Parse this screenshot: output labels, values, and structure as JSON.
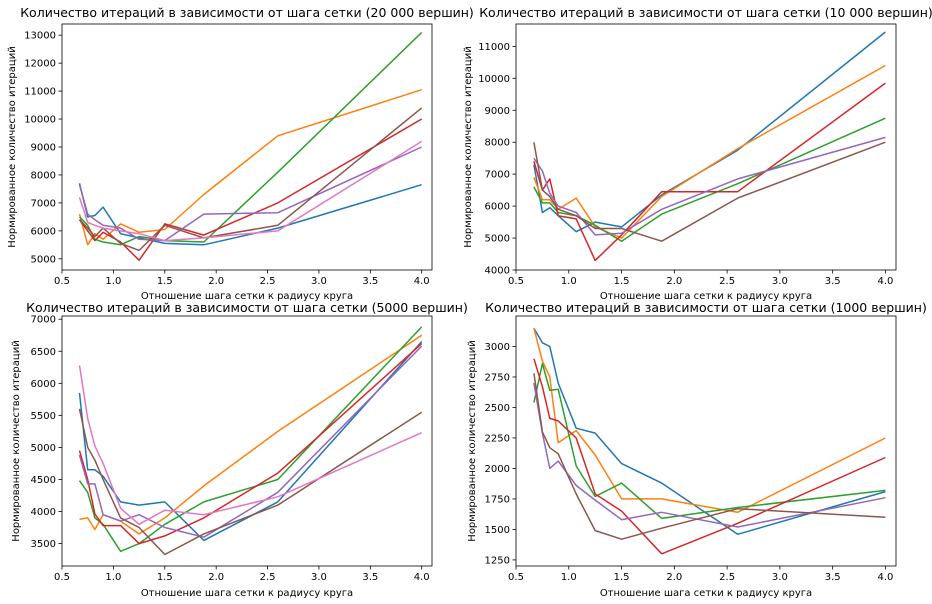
{
  "colors": [
    "#1f77b4",
    "#ff7f0e",
    "#2ca02c",
    "#d62728",
    "#9467bd",
    "#8c564b",
    "#e377c2"
  ],
  "chart_data": [
    {
      "type": "line",
      "title": "Количество итераций в зависимости от шага сетки (20 000 вершин)",
      "xlabel": "Отношение шага сетки к радиусу круга",
      "ylabel": "Нормированное количество итераций",
      "xlim": [
        0.5,
        4.1
      ],
      "ylim": [
        4600,
        13400
      ],
      "xticks": [
        0.5,
        1.0,
        1.5,
        2.0,
        2.5,
        3.0,
        3.5,
        4.0
      ],
      "xtick_labels": [
        "0.5",
        "1.0",
        "1.5",
        "2.0",
        "2.5",
        "3.0",
        "3.5",
        "4.0"
      ],
      "yticks": [
        5000,
        6000,
        7000,
        8000,
        9000,
        10000,
        11000,
        12000,
        13000
      ],
      "ytick_labels": [
        "5000",
        "6000",
        "7000",
        "8000",
        "9000",
        "10000",
        "11000",
        "12000",
        "13000"
      ],
      "grid": false,
      "series": [
        {
          "x": [
            0.67,
            0.75,
            0.82,
            0.9,
            1.07,
            1.25,
            1.5,
            1.88,
            2.6,
            4.0
          ],
          "y": [
            7700,
            6500,
            6550,
            6850,
            5900,
            5750,
            5550,
            5500,
            6100,
            7650
          ]
        },
        {
          "x": [
            0.67,
            0.75,
            0.82,
            0.9,
            1.07,
            1.25,
            1.5,
            1.88,
            2.6,
            4.0
          ],
          "y": [
            6600,
            5500,
            5900,
            5700,
            6250,
            5950,
            6050,
            7300,
            9400,
            11050
          ]
        },
        {
          "x": [
            0.67,
            0.75,
            0.82,
            0.9,
            1.07,
            1.25,
            1.5,
            1.88,
            2.6,
            4.0
          ],
          "y": [
            6500,
            6200,
            5700,
            5600,
            5500,
            5800,
            5650,
            5600,
            8100,
            13100
          ]
        },
        {
          "x": [
            0.67,
            0.75,
            0.82,
            0.9,
            1.07,
            1.25,
            1.5,
            1.88,
            2.6,
            4.0
          ],
          "y": [
            6400,
            6000,
            5650,
            5950,
            5600,
            4950,
            6250,
            5850,
            7000,
            10000
          ]
        },
        {
          "x": [
            0.67,
            0.75,
            0.82,
            0.9,
            1.07,
            1.25,
            1.5,
            1.88,
            2.6,
            4.0
          ],
          "y": [
            7650,
            6600,
            6400,
            6200,
            6100,
            5700,
            5650,
            6600,
            6650,
            9000
          ]
        },
        {
          "x": [
            0.67,
            0.75,
            0.82,
            0.9,
            1.07,
            1.25,
            1.5,
            1.88,
            2.6,
            4.0
          ],
          "y": [
            6400,
            6100,
            5800,
            6100,
            5550,
            5300,
            6200,
            5750,
            6200,
            10400
          ]
        },
        {
          "x": [
            0.67,
            0.75,
            0.82,
            0.9,
            1.07,
            1.25,
            1.5,
            1.88,
            2.6,
            4.0
          ],
          "y": [
            7200,
            6300,
            6200,
            6100,
            6000,
            5900,
            5650,
            5750,
            6000,
            9200
          ]
        }
      ]
    },
    {
      "type": "line",
      "title": "Количество итераций в зависимости от шага сетки (10 000 вершин)",
      "xlabel": "Отношение шага сетки к радиусу круга",
      "ylabel": "Нормированное количество итераций",
      "xlim": [
        0.5,
        4.1
      ],
      "ylim": [
        4000,
        11700
      ],
      "xticks": [
        0.5,
        1.0,
        1.5,
        2.0,
        2.5,
        3.0,
        3.5,
        4.0
      ],
      "xtick_labels": [
        "0.5",
        "1.0",
        "1.5",
        "2.0",
        "2.5",
        "3.0",
        "3.5",
        "4.0"
      ],
      "yticks": [
        4000,
        5000,
        6000,
        7000,
        8000,
        9000,
        10000,
        11000
      ],
      "ytick_labels": [
        "4000",
        "5000",
        "6000",
        "7000",
        "8000",
        "9000",
        "10000",
        "11000"
      ],
      "grid": false,
      "series": [
        {
          "x": [
            0.67,
            0.75,
            0.82,
            0.9,
            1.07,
            1.25,
            1.5,
            1.88,
            2.6,
            4.0
          ],
          "y": [
            7300,
            5800,
            5950,
            5700,
            5200,
            5500,
            5350,
            6350,
            7750,
            11450
          ]
        },
        {
          "x": [
            0.67,
            0.75,
            0.82,
            0.9,
            1.07,
            1.25,
            1.5,
            1.88,
            2.6,
            4.0
          ],
          "y": [
            6900,
            6200,
            6200,
            5900,
            6250,
            5350,
            5000,
            6300,
            7800,
            10400
          ]
        },
        {
          "x": [
            0.67,
            0.75,
            0.82,
            0.9,
            1.07,
            1.25,
            1.5,
            1.88,
            2.6,
            4.0
          ],
          "y": [
            6600,
            6100,
            6100,
            5800,
            5700,
            5400,
            4900,
            5750,
            6700,
            8750
          ]
        },
        {
          "x": [
            0.67,
            0.75,
            0.82,
            0.9,
            1.07,
            1.25,
            1.5,
            1.88,
            2.6,
            4.0
          ],
          "y": [
            7400,
            6500,
            6850,
            5700,
            5600,
            4300,
            5100,
            6450,
            6450,
            9850
          ]
        },
        {
          "x": [
            0.67,
            0.75,
            0.82,
            0.9,
            1.07,
            1.25,
            1.5,
            1.88,
            2.6,
            4.0
          ],
          "y": [
            7500,
            7100,
            6400,
            6000,
            5800,
            5100,
            5150,
            5900,
            6850,
            8150
          ]
        },
        {
          "x": [
            0.67,
            0.75,
            0.82,
            0.9,
            1.07,
            1.25,
            1.5,
            1.88,
            2.6,
            4.0
          ],
          "y": [
            8000,
            6500,
            6300,
            5900,
            5700,
            5300,
            5300,
            4900,
            6250,
            8000
          ]
        }
      ]
    },
    {
      "type": "line",
      "title": "Количество итераций в зависимости от шага сетки (5000 вершин)",
      "xlabel": "Отношение шага сетки к радиусу круга",
      "ylabel": "Нормированное количество итераций",
      "xlim": [
        0.5,
        4.1
      ],
      "ylim": [
        3150,
        7050
      ],
      "xticks": [
        0.5,
        1.0,
        1.5,
        2.0,
        2.5,
        3.0,
        3.5,
        4.0
      ],
      "xtick_labels": [
        "0.5",
        "1.0",
        "1.5",
        "2.0",
        "2.5",
        "3.0",
        "3.5",
        "4.0"
      ],
      "yticks": [
        3500,
        4000,
        4500,
        5000,
        5500,
        6000,
        6500,
        7000
      ],
      "ytick_labels": [
        "3500",
        "4000",
        "4500",
        "5000",
        "5500",
        "6000",
        "6500",
        "7000"
      ],
      "grid": false,
      "series": [
        {
          "x": [
            0.67,
            0.75,
            0.82,
            0.9,
            1.07,
            1.25,
            1.5,
            1.88,
            2.6,
            4.0
          ],
          "y": [
            5850,
            4650,
            4650,
            4550,
            4150,
            4100,
            4150,
            3550,
            4150,
            6650
          ]
        },
        {
          "x": [
            0.67,
            0.75,
            0.82,
            0.9,
            1.07,
            1.25,
            1.5,
            1.88,
            2.6,
            4.0
          ],
          "y": [
            3880,
            3900,
            3720,
            3950,
            3850,
            3650,
            3900,
            4400,
            5250,
            6750
          ]
        },
        {
          "x": [
            0.67,
            0.75,
            0.82,
            0.9,
            1.07,
            1.25,
            1.5,
            1.88,
            2.6,
            4.0
          ],
          "y": [
            4480,
            4300,
            3900,
            3800,
            3380,
            3500,
            3800,
            4150,
            4500,
            6880
          ]
        },
        {
          "x": [
            0.67,
            0.75,
            0.82,
            0.9,
            1.07,
            1.25,
            1.5,
            1.88,
            2.6,
            4.0
          ],
          "y": [
            4950,
            4500,
            3960,
            3780,
            3780,
            3500,
            3620,
            3900,
            4600,
            6620
          ]
        },
        {
          "x": [
            0.67,
            0.75,
            0.82,
            0.9,
            1.07,
            1.25,
            1.5,
            1.88,
            2.6,
            4.0
          ],
          "y": [
            4880,
            4430,
            4430,
            3950,
            3850,
            3950,
            3750,
            3600,
            4300,
            6580
          ]
        },
        {
          "x": [
            0.67,
            0.75,
            0.82,
            0.9,
            1.07,
            1.25,
            1.5,
            1.88,
            2.6,
            4.0
          ],
          "y": [
            5600,
            5000,
            4800,
            4500,
            3900,
            3750,
            3330,
            3650,
            4100,
            5550
          ]
        },
        {
          "x": [
            0.67,
            0.75,
            0.82,
            0.9,
            1.07,
            1.25,
            1.5,
            1.88,
            2.6,
            4.0
          ],
          "y": [
            6280,
            5450,
            5020,
            4750,
            4050,
            3800,
            4020,
            3950,
            4230,
            5230
          ]
        }
      ]
    },
    {
      "type": "line",
      "title": "Количество итераций в зависимости от шага сетки (1000 вершин)",
      "xlabel": "Отношение шага сетки к радиусу круга",
      "ylabel": "Нормированное количество итераций",
      "xlim": [
        0.5,
        4.1
      ],
      "ylim": [
        1200,
        3250
      ],
      "xticks": [
        0.5,
        1.0,
        1.5,
        2.0,
        2.5,
        3.0,
        3.5,
        4.0
      ],
      "xtick_labels": [
        "0.5",
        "1.0",
        "1.5",
        "2.0",
        "2.5",
        "3.0",
        "3.5",
        "4.0"
      ],
      "yticks": [
        1250,
        1500,
        1750,
        2000,
        2250,
        2500,
        2750,
        3000
      ],
      "ytick_labels": [
        "1250",
        "1500",
        "1750",
        "2000",
        "2250",
        "2500",
        "2750",
        "3000"
      ],
      "grid": false,
      "series": [
        {
          "x": [
            0.67,
            0.75,
            0.82,
            0.9,
            1.07,
            1.25,
            1.5,
            1.88,
            2.6,
            4.0
          ],
          "y": [
            3150,
            3030,
            3000,
            2700,
            2330,
            2290,
            2040,
            1880,
            1460,
            1810
          ]
        },
        {
          "x": [
            0.67,
            0.75,
            0.82,
            0.9,
            1.07,
            1.25,
            1.5,
            1.88,
            2.6,
            4.0
          ],
          "y": [
            3150,
            2880,
            2750,
            2210,
            2310,
            2110,
            1750,
            1750,
            1640,
            2250
          ]
        },
        {
          "x": [
            0.67,
            0.75,
            0.82,
            0.9,
            1.07,
            1.25,
            1.5,
            1.88,
            2.6,
            4.0
          ],
          "y": [
            2540,
            2860,
            2640,
            2650,
            2020,
            1770,
            1880,
            1590,
            1680,
            1820
          ]
        },
        {
          "x": [
            0.67,
            0.75,
            0.82,
            0.9,
            1.07,
            1.25,
            1.5,
            1.88,
            2.6,
            4.0
          ],
          "y": [
            2900,
            2670,
            2410,
            2390,
            2250,
            1790,
            1650,
            1300,
            1550,
            2090
          ]
        },
        {
          "x": [
            0.67,
            0.75,
            0.82,
            0.9,
            1.07,
            1.25,
            1.5,
            1.88,
            2.6,
            4.0
          ],
          "y": [
            2700,
            2290,
            2000,
            2060,
            1860,
            1740,
            1580,
            1640,
            1520,
            1760
          ]
        },
        {
          "x": [
            0.67,
            0.75,
            0.82,
            0.9,
            1.07,
            1.25,
            1.5,
            1.88,
            2.6,
            4.0
          ],
          "y": [
            2780,
            2300,
            2170,
            2120,
            1790,
            1490,
            1420,
            1510,
            1670,
            1600
          ]
        }
      ]
    }
  ]
}
